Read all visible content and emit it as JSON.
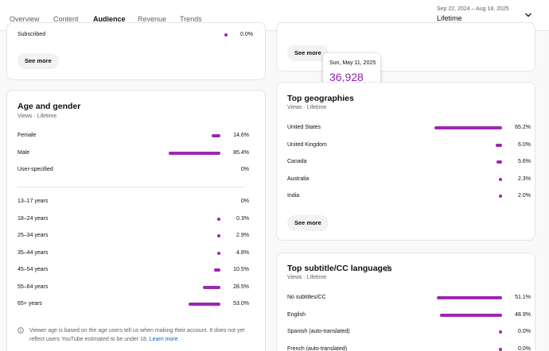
{
  "header": {
    "tabs": [
      {
        "label": "Overview"
      },
      {
        "label": "Content"
      },
      {
        "label": "Audience"
      },
      {
        "label": "Revenue"
      },
      {
        "label": "Trends"
      }
    ],
    "date_range": "Sep 22, 2024 – Aug 18, 2025",
    "period": "Lifetime"
  },
  "subscription_card": {
    "row_label": "Subscribed",
    "row_value": "0.0%",
    "row_fraction": 0.0,
    "see_more": "See more"
  },
  "upper_right_card": {
    "see_more": "See more"
  },
  "tooltip": {
    "date": "Sun, May 11, 2025",
    "value": "36,928"
  },
  "age_gender": {
    "title": "Age and gender",
    "subtitle": "Views · Lifetime",
    "gender": [
      {
        "label": "Female",
        "value": "14.6%",
        "fraction": 0.146
      },
      {
        "label": "Male",
        "value": "85.4%",
        "fraction": 0.854
      },
      {
        "label": "User-specified",
        "value": "0%",
        "fraction": 0.0
      }
    ],
    "ages": [
      {
        "label": "13–17 years",
        "value": "0%",
        "fraction": 0.0
      },
      {
        "label": "18–24 years",
        "value": "0.3%",
        "fraction": 0.003
      },
      {
        "label": "25–34 years",
        "value": "2.9%",
        "fraction": 0.029
      },
      {
        "label": "35–44 years",
        "value": "4.8%",
        "fraction": 0.048
      },
      {
        "label": "45–54 years",
        "value": "10.5%",
        "fraction": 0.105
      },
      {
        "label": "55–64 years",
        "value": "28.5%",
        "fraction": 0.285
      },
      {
        "label": "65+ years",
        "value": "53.0%",
        "fraction": 0.53
      }
    ],
    "note": "Viewer age is based on the age users tell us when making their account. It does not yet reflect users YouTube estimated to be under 18.",
    "learn_more": "Learn more"
  },
  "geographies": {
    "title": "Top geographies",
    "subtitle": "Views · Lifetime",
    "rows": [
      {
        "label": "United States",
        "value": "65.2%",
        "fraction": 0.652
      },
      {
        "label": "United Kingdom",
        "value": "6.0%",
        "fraction": 0.06
      },
      {
        "label": "Canada",
        "value": "5.6%",
        "fraction": 0.056
      },
      {
        "label": "Australia",
        "value": "2.3%",
        "fraction": 0.023
      },
      {
        "label": "India",
        "value": "2.0%",
        "fraction": 0.02
      }
    ],
    "see_more": "See more"
  },
  "subtitles": {
    "title": "Top subtitle/CC languages",
    "subtitle": "Views · Lifetime",
    "rows": [
      {
        "label": "No subtitles/CC",
        "value": "51.1%",
        "fraction": 0.511
      },
      {
        "label": "English",
        "value": "48.9%",
        "fraction": 0.489
      },
      {
        "label": "Spanish (auto-translated)",
        "value": "0.0%",
        "fraction": 0.0
      },
      {
        "label": "French (auto-translated)",
        "value": "0.0%",
        "fraction": 0.0
      }
    ]
  },
  "colors": {
    "accent": "#9c27b0",
    "link": "#065fd4",
    "tooltip_value": "#8e24aa"
  }
}
